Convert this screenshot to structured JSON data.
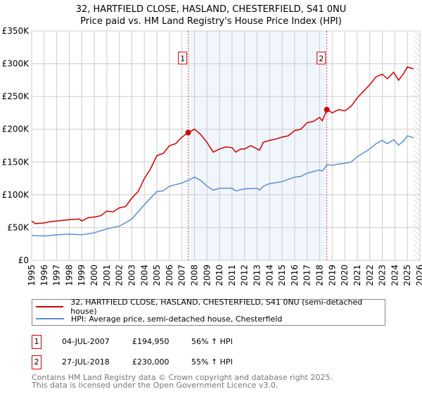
{
  "title": "32, HARTFIELD CLOSE, HASLAND, CHESTERFIELD, S41 0NU",
  "subtitle": "Price paid vs. HM Land Registry's House Price Index (HPI)",
  "chart_data": {
    "type": "line",
    "title": "32, HARTFIELD CLOSE, HASLAND, CHESTERFIELD, S41 0NU",
    "subtitle": "Price paid vs. HM Land Registry's House Price Index (HPI)",
    "xlim": [
      1995,
      2026
    ],
    "ylim": [
      0,
      350000
    ],
    "y_ticks": [
      0,
      50000,
      100000,
      150000,
      200000,
      250000,
      300000,
      350000
    ],
    "y_tick_labels": [
      "£0",
      "£50K",
      "£100K",
      "£150K",
      "£200K",
      "£250K",
      "£300K",
      "£350K"
    ],
    "x_ticks": [
      1995,
      1996,
      1997,
      1998,
      1999,
      2000,
      2001,
      2002,
      2003,
      2004,
      2005,
      2006,
      2007,
      2008,
      2009,
      2010,
      2011,
      2012,
      2013,
      2014,
      2015,
      2016,
      2017,
      2018,
      2019,
      2020,
      2021,
      2022,
      2023,
      2024,
      2025,
      2026
    ],
    "grid": true,
    "series": [
      {
        "name": "32, HARTFIELD CLOSE, HASLAND, CHESTERFIELD, S41 0NU (semi-detached house)",
        "color": "#cc0000",
        "x": [
          1995,
          1995.3,
          1996,
          1996.5,
          1997,
          1998,
          1998.8,
          1999,
          1999.5,
          2000,
          2000.5,
          2001,
          2001.5,
          2002,
          2002.5,
          2003,
          2003.5,
          2004,
          2004.5,
          2005,
          2005.5,
          2006,
          2006.5,
          2007,
          2007.5,
          2008,
          2008.5,
          2009,
          2009.5,
          2010,
          2010.5,
          2011,
          2011.3,
          2011.7,
          2012,
          2012.5,
          2013,
          2013.2,
          2013.5,
          2014,
          2014.5,
          2015,
          2015.5,
          2016,
          2016.5,
          2017,
          2017.5,
          2018,
          2018.2,
          2018.6,
          2019,
          2019.5,
          2020,
          2020.5,
          2021,
          2021.5,
          2022,
          2022.5,
          2023,
          2023.4,
          2023.9,
          2024.3,
          2024.7,
          2025,
          2025.5
        ],
        "y": [
          60000,
          56000,
          57000,
          59000,
          60000,
          62000,
          63000,
          60000,
          65000,
          66000,
          68000,
          75000,
          74000,
          80000,
          82000,
          95000,
          105000,
          125000,
          140000,
          160000,
          163000,
          175000,
          178000,
          188000,
          195000,
          200000,
          192000,
          180000,
          165000,
          170000,
          173000,
          172000,
          165000,
          170000,
          170000,
          175000,
          170000,
          168000,
          180000,
          183000,
          185000,
          188000,
          190000,
          198000,
          200000,
          210000,
          212000,
          218000,
          213000,
          230000,
          225000,
          230000,
          228000,
          235000,
          248000,
          258000,
          268000,
          280000,
          284000,
          277000,
          287000,
          275000,
          285000,
          295000,
          292000
        ]
      },
      {
        "name": "HPI: Average price, semi-detached house, Chesterfield",
        "color": "#5b8fd0",
        "x": [
          1995,
          1996,
          1997,
          1998,
          1999,
          2000,
          2001,
          2002,
          2003,
          2004,
          2005,
          2005.5,
          2006,
          2007,
          2007.5,
          2008,
          2008.5,
          2009,
          2009.5,
          2010,
          2011,
          2011.3,
          2012,
          2013,
          2013.2,
          2013.5,
          2014,
          2015,
          2016,
          2016.5,
          2017,
          2018,
          2018.2,
          2018.6,
          2019,
          2019.5,
          2020,
          2020.5,
          2021,
          2021.5,
          2022,
          2022.5,
          2023,
          2023.4,
          2023.9,
          2024.3,
          2024.7,
          2025,
          2025.5
        ],
        "y": [
          38000,
          37000,
          39000,
          40000,
          39000,
          42000,
          48000,
          52000,
          63000,
          85000,
          105000,
          106000,
          113000,
          118000,
          122000,
          127000,
          122000,
          113000,
          107000,
          110000,
          110000,
          106000,
          109000,
          110000,
          107000,
          113000,
          117000,
          120000,
          127000,
          128000,
          133000,
          138000,
          136000,
          146000,
          145000,
          147000,
          148000,
          150000,
          158000,
          164000,
          170000,
          178000,
          183000,
          178000,
          184000,
          176000,
          182000,
          190000,
          187000
        ]
      }
    ],
    "annotations": [
      {
        "label": "1",
        "x": 2007.5,
        "y": 194950
      },
      {
        "label": "2",
        "x": 2018.57,
        "y": 230000
      }
    ]
  },
  "legend": {
    "red_label": "32, HARTFIELD CLOSE, HASLAND, CHESTERFIELD, S41 0NU (semi-detached house)",
    "blue_label": "HPI: Average price, semi-detached house, Chesterfield"
  },
  "sales": [
    {
      "num": "1",
      "date": "04-JUL-2007",
      "price": "£194,950",
      "hpi": "56% ↑ HPI"
    },
    {
      "num": "2",
      "date": "27-JUL-2018",
      "price": "£230,000",
      "hpi": "55% ↑ HPI"
    }
  ],
  "footer": {
    "line1": "Contains HM Land Registry data © Crown copyright and database right 2025.",
    "line2": "This data is licensed under the Open Government Licence v3.0."
  }
}
